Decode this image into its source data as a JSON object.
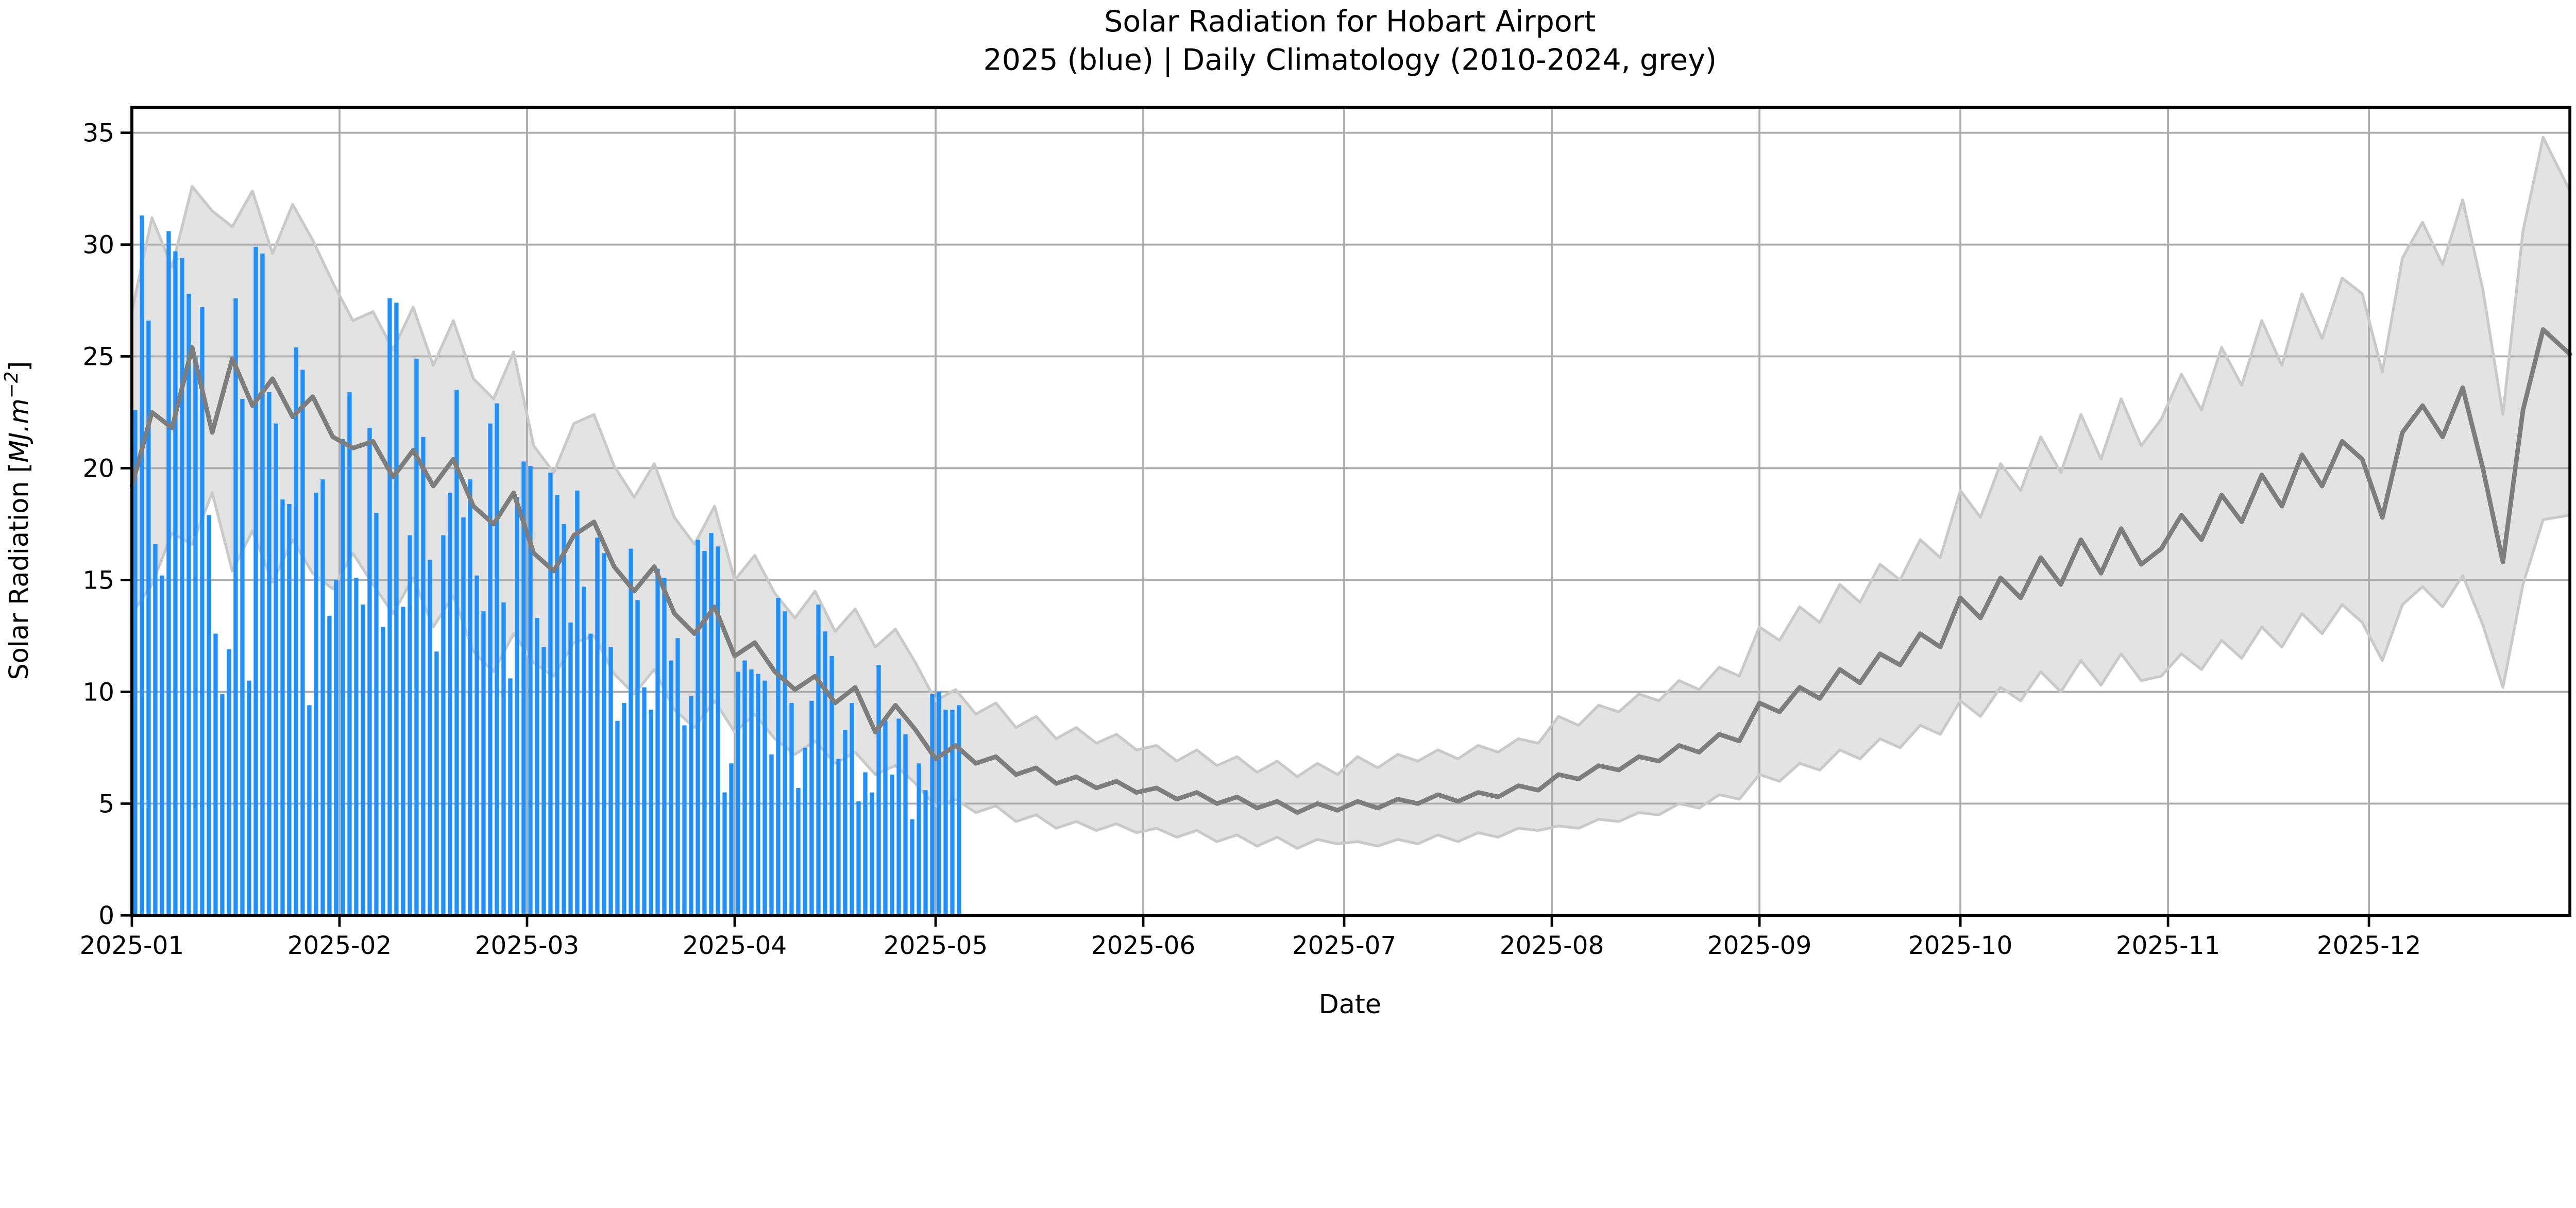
{
  "chart_data": {
    "type": "bar",
    "title": "Solar Radiation for Hobart Airport",
    "subtitle": "2025 (blue) | Daily Climatology (2010-2024, grey)",
    "xlabel": "Date",
    "ylabel": "Solar Radiation [MJ.m⁻²]",
    "ylabel_parts": {
      "prefix": "Solar Radiation [",
      "math": "MJ.m",
      "sup": "−2",
      "suffix": "]"
    },
    "grid": true,
    "x_axis": {
      "unit": "day of year 2025",
      "range_days": [
        0,
        364
      ],
      "tick_labels": [
        "2025-01",
        "2025-02",
        "2025-03",
        "2025-04",
        "2025-05",
        "2025-06",
        "2025-07",
        "2025-08",
        "2025-09",
        "2025-10",
        "2025-11",
        "2025-12"
      ],
      "tick_day_of_year": [
        0,
        31,
        59,
        90,
        120,
        151,
        181,
        212,
        243,
        273,
        304,
        334
      ]
    },
    "y_axis": {
      "ticks": [
        0,
        5,
        10,
        15,
        20,
        25,
        30,
        35
      ],
      "limits": [
        0,
        36.1
      ]
    },
    "colors": {
      "bar_2025": "#1E90FF",
      "climatology_mean": "#7D7D7D",
      "climatology_band_fill": "#E3E3E3",
      "climatology_band_edge": "#C9C9C9",
      "grid": "#ABABAB",
      "spine": "#000000",
      "text": "#000000",
      "background": "#FFFFFF"
    },
    "series": [
      {
        "name": "2025 daily solar radiation",
        "type": "bar",
        "color": "#1E90FF",
        "start_day": 0,
        "step_days": 1,
        "values": [
          22.6,
          31.3,
          26.6,
          16.6,
          15.2,
          30.6,
          29.7,
          29.4,
          27.8,
          25.0,
          27.2,
          17.9,
          12.6,
          9.9,
          11.9,
          27.6,
          23.1,
          10.5,
          29.9,
          29.6,
          23.4,
          22.0,
          18.6,
          18.4,
          25.4,
          24.4,
          9.4,
          18.9,
          19.5,
          13.4,
          15.0,
          21.3,
          23.4,
          15.1,
          13.9,
          21.8,
          18.0,
          12.9,
          27.6,
          27.4,
          13.8,
          17.0,
          24.9,
          21.4,
          15.9,
          11.8,
          17.0,
          18.9,
          23.5,
          17.8,
          19.5,
          15.2,
          13.6,
          22.0,
          22.9,
          14.0,
          10.6,
          18.7,
          20.3,
          20.1,
          13.3,
          12.0,
          19.8,
          18.8,
          17.5,
          13.1,
          19.0,
          14.7,
          12.6,
          16.9,
          16.2,
          12.0,
          8.7,
          9.5,
          16.4,
          14.1,
          10.2,
          9.2,
          15.5,
          15.1,
          11.4,
          12.4,
          8.5,
          9.8,
          16.8,
          16.3,
          17.1,
          16.5,
          5.5,
          6.8,
          10.9,
          11.4,
          11.0,
          10.8,
          10.5,
          7.2,
          14.2,
          13.6,
          9.5,
          5.7,
          7.5,
          9.6,
          13.9,
          12.7,
          11.6,
          7.0,
          8.3,
          9.5,
          5.1,
          6.4,
          5.5,
          11.2,
          8.7,
          6.3,
          8.8,
          8.1,
          4.3,
          6.8,
          5.6,
          9.9,
          10.0,
          9.2,
          9.2,
          9.4
        ]
      },
      {
        "name": "Daily climatology mean (2010-2024)",
        "type": "line",
        "color": "#7D7D7D",
        "start_day": 0,
        "step_days": 3,
        "values": [
          19.2,
          22.5,
          21.8,
          25.4,
          21.6,
          24.9,
          22.8,
          24.0,
          22.3,
          23.2,
          21.4,
          20.9,
          21.2,
          19.6,
          20.8,
          19.2,
          20.4,
          18.3,
          17.5,
          18.9,
          16.2,
          15.4,
          17.0,
          17.6,
          15.6,
          14.5,
          15.6,
          13.5,
          12.6,
          13.8,
          11.6,
          12.2,
          10.9,
          10.1,
          10.7,
          9.5,
          10.2,
          8.2,
          9.4,
          8.3,
          7.0,
          7.6,
          6.8,
          7.1,
          6.3,
          6.6,
          5.9,
          6.2,
          5.7,
          6.0,
          5.5,
          5.7,
          5.2,
          5.5,
          5.0,
          5.3,
          4.8,
          5.1,
          4.6,
          5.0,
          4.7,
          5.1,
          4.8,
          5.2,
          5.0,
          5.4,
          5.1,
          5.5,
          5.3,
          5.8,
          5.6,
          6.3,
          6.1,
          6.7,
          6.5,
          7.1,
          6.9,
          7.6,
          7.3,
          8.1,
          7.8,
          9.5,
          9.1,
          10.2,
          9.7,
          11.0,
          10.4,
          11.7,
          11.2,
          12.6,
          12.0,
          14.2,
          13.3,
          15.1,
          14.2,
          16.0,
          14.8,
          16.8,
          15.3,
          17.3,
          15.7,
          16.4,
          17.9,
          16.8,
          18.8,
          17.6,
          19.7,
          18.3,
          20.6,
          19.2,
          21.2,
          20.4,
          17.8,
          21.6,
          22.8,
          21.4,
          23.6,
          20.0,
          15.8,
          22.6,
          26.2,
          25.1
        ]
      },
      {
        "name": "Daily climatology band upper (2010-2024)",
        "type": "area-upper",
        "fill_color": "#E3E3E3",
        "edge_color": "#C9C9C9",
        "start_day": 0,
        "step_days": 3,
        "values": [
          27.0,
          31.2,
          29.0,
          32.6,
          31.5,
          30.8,
          32.4,
          29.6,
          31.8,
          30.2,
          28.3,
          26.6,
          27.0,
          25.3,
          27.2,
          24.6,
          26.6,
          24.0,
          23.1,
          25.2,
          21.0,
          19.8,
          22.0,
          22.4,
          20.1,
          18.7,
          20.2,
          17.8,
          16.6,
          18.3,
          15.0,
          16.1,
          14.4,
          13.3,
          14.5,
          12.7,
          13.7,
          12.0,
          12.8,
          11.3,
          9.6,
          10.1,
          9.0,
          9.5,
          8.4,
          8.9,
          7.9,
          8.4,
          7.7,
          8.1,
          7.4,
          7.6,
          6.9,
          7.4,
          6.7,
          7.1,
          6.4,
          6.9,
          6.2,
          6.8,
          6.3,
          7.1,
          6.6,
          7.2,
          6.9,
          7.4,
          7.0,
          7.6,
          7.3,
          7.9,
          7.7,
          8.9,
          8.5,
          9.4,
          9.1,
          9.9,
          9.6,
          10.5,
          10.1,
          11.1,
          10.7,
          12.9,
          12.3,
          13.8,
          13.1,
          14.8,
          14.0,
          15.7,
          15.0,
          16.8,
          16.0,
          19.0,
          17.8,
          20.2,
          19.0,
          21.4,
          19.8,
          22.4,
          20.4,
          23.1,
          21.0,
          22.2,
          24.2,
          22.6,
          25.4,
          23.7,
          26.6,
          24.6,
          27.8,
          25.8,
          28.5,
          27.8,
          24.3,
          29.4,
          31.0,
          29.1,
          32.0,
          28.0,
          22.4,
          30.6,
          34.8,
          32.4
        ]
      },
      {
        "name": "Daily climatology band lower (2010-2024)",
        "type": "area-lower",
        "fill_color": "#E3E3E3",
        "edge_color": "#C9C9C9",
        "start_day": 0,
        "step_days": 3,
        "values": [
          13.5,
          14.8,
          17.1,
          16.6,
          18.9,
          15.4,
          17.2,
          14.9,
          16.8,
          15.3,
          14.6,
          16.2,
          14.8,
          13.5,
          15.1,
          12.9,
          14.3,
          11.8,
          10.9,
          12.6,
          11.3,
          10.7,
          12.2,
          12.5,
          10.8,
          9.9,
          11.0,
          9.2,
          8.4,
          9.6,
          8.2,
          9.0,
          7.9,
          7.2,
          7.8,
          6.8,
          7.3,
          6.3,
          6.7,
          5.9,
          4.9,
          5.2,
          4.6,
          4.9,
          4.2,
          4.5,
          3.9,
          4.2,
          3.8,
          4.1,
          3.7,
          3.9,
          3.5,
          3.8,
          3.3,
          3.6,
          3.1,
          3.5,
          3.0,
          3.4,
          3.2,
          3.3,
          3.1,
          3.4,
          3.2,
          3.6,
          3.3,
          3.7,
          3.5,
          3.9,
          3.8,
          4.0,
          3.9,
          4.3,
          4.2,
          4.6,
          4.5,
          5.0,
          4.8,
          5.4,
          5.2,
          6.3,
          6.0,
          6.8,
          6.5,
          7.4,
          7.0,
          7.9,
          7.5,
          8.5,
          8.1,
          9.6,
          8.9,
          10.2,
          9.6,
          10.9,
          10.0,
          11.4,
          10.3,
          11.7,
          10.5,
          10.7,
          11.7,
          11.0,
          12.3,
          11.5,
          12.9,
          12.0,
          13.5,
          12.6,
          13.9,
          13.1,
          11.4,
          13.9,
          14.7,
          13.8,
          15.2,
          13.0,
          10.2,
          14.8,
          17.7,
          17.9
        ]
      }
    ]
  }
}
